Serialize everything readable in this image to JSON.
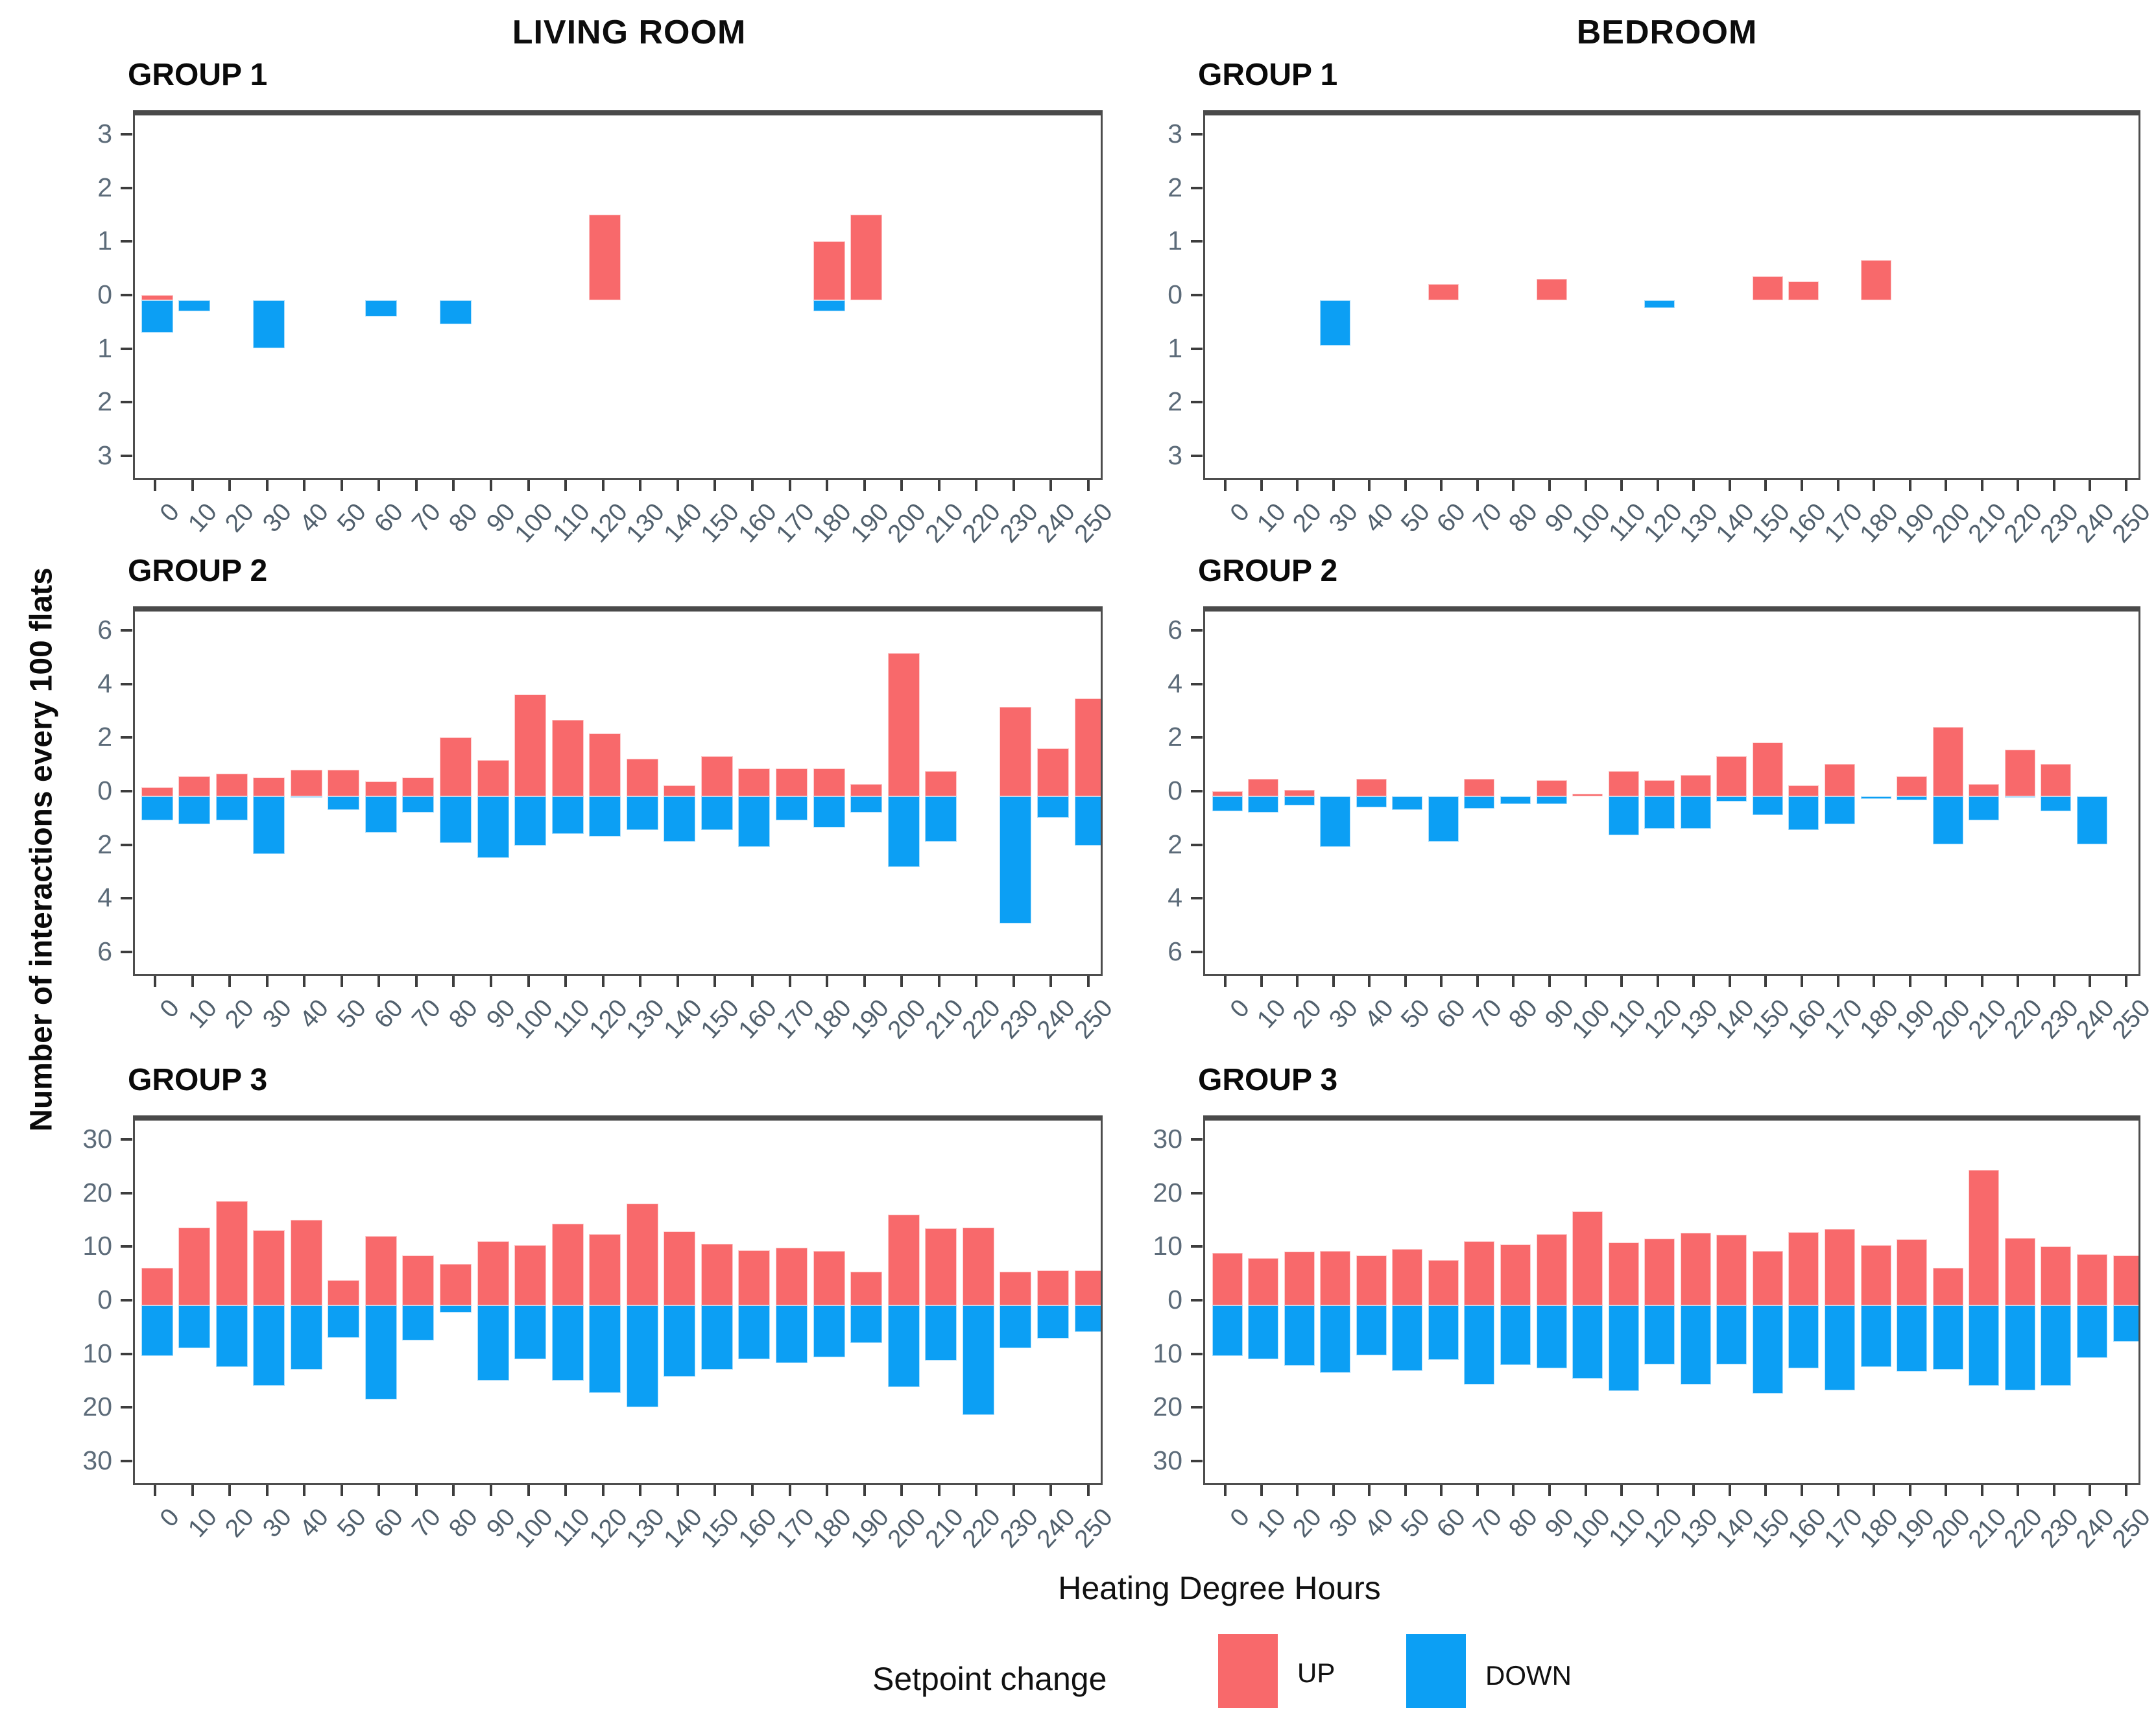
{
  "header": {
    "left_column_title": "LIVING ROOM",
    "right_column_title": "BEDROOM"
  },
  "chart_data": {
    "type": "bar",
    "description": "Diverging bar charts of thermostat setpoint interactions (UP above zero in red, DOWN below zero in blue) versus Heating Degree Hours, for two rooms and three occupant groups.",
    "xlabel": "Heating Degree Hours",
    "ylabel": "Number of interactions every 100 flats",
    "legend": {
      "title": "Setpoint change",
      "entries": [
        {
          "label": "UP",
          "color": "#F8696B"
        },
        {
          "label": "DOWN",
          "color": "#0C9FF4"
        }
      ],
      "position": "bottom"
    },
    "colors": {
      "up": "#F8696B",
      "down": "#0C9FF4",
      "axis_text": "#55636F",
      "border": "#4D4D4D"
    },
    "grid": false,
    "x_bins": [
      0,
      10,
      20,
      30,
      40,
      50,
      60,
      70,
      80,
      90,
      100,
      110,
      120,
      130,
      140,
      150,
      160,
      170,
      180,
      190,
      200,
      210,
      220,
      230,
      240,
      250
    ],
    "panels": [
      {
        "room": "LIVING ROOM",
        "group_label": "GROUP 1",
        "ylim": [
          -3.45,
          3.45
        ],
        "edge": 3.45,
        "ytick_vals": [
          3,
          2,
          1,
          0,
          -1,
          -2,
          -3
        ],
        "ytick_labels": [
          "3",
          "2",
          "1",
          "0",
          "1",
          "2",
          "3"
        ],
        "up": [
          0.1,
          0,
          0,
          0,
          0,
          0,
          0,
          0,
          0,
          0,
          0,
          0,
          1.6,
          0,
          0,
          0,
          0,
          0,
          1.1,
          1.6,
          0,
          0,
          0,
          0,
          0,
          0
        ],
        "down": [
          -0.6,
          -0.2,
          0,
          -0.9,
          0,
          0,
          -0.3,
          0,
          -0.45,
          0,
          0,
          0,
          0,
          0,
          0,
          0,
          0,
          0,
          -0.2,
          0,
          0,
          0,
          0,
          0,
          0,
          0
        ]
      },
      {
        "room": "BEDROOM",
        "group_label": "GROUP 1",
        "ylim": [
          -3.45,
          3.45
        ],
        "edge": 3.45,
        "ytick_vals": [
          3,
          2,
          1,
          0,
          -1,
          -2,
          -3
        ],
        "ytick_labels": [
          "3",
          "2",
          "1",
          "0",
          "1",
          "2",
          "3"
        ],
        "up": [
          0,
          0,
          0,
          0,
          0,
          0,
          0.3,
          0,
          0,
          0.4,
          0,
          0,
          0,
          0,
          0,
          0.45,
          0.35,
          0,
          0.75,
          0,
          0,
          0,
          0,
          0,
          0,
          0
        ],
        "down": [
          0,
          0,
          0,
          -0.85,
          0,
          0,
          0,
          0,
          0,
          0,
          0,
          0,
          -0.15,
          0,
          0,
          0,
          0,
          0,
          0,
          0,
          0,
          0,
          0,
          0,
          0,
          0
        ]
      },
      {
        "room": "LIVING ROOM",
        "group_label": "GROUP 2",
        "ylim": [
          -6.9,
          6.9
        ],
        "edge": 6.9,
        "ytick_vals": [
          6,
          4,
          2,
          0,
          -2,
          -4,
          -6
        ],
        "ytick_labels": [
          "6",
          "4",
          "2",
          "0",
          "2",
          "4",
          "6"
        ],
        "up": [
          0.35,
          0.75,
          0.85,
          0.7,
          1.0,
          1.0,
          0.55,
          0.7,
          2.2,
          1.35,
          3.8,
          2.85,
          2.35,
          1.4,
          0.4,
          1.5,
          1.05,
          1.05,
          1.05,
          0.45,
          5.35,
          0.95,
          0,
          3.35,
          1.8,
          3.65
        ],
        "down": [
          -0.9,
          -1.05,
          -0.9,
          -2.15,
          -0.05,
          -0.5,
          -1.35,
          -0.6,
          -1.75,
          -2.3,
          -1.85,
          -1.4,
          -1.5,
          -1.25,
          -1.7,
          -1.25,
          -1.9,
          -0.9,
          -1.15,
          -0.6,
          -2.65,
          -1.7,
          0,
          -4.75,
          -0.8,
          -1.85
        ]
      },
      {
        "room": "BEDROOM",
        "group_label": "GROUP 2",
        "ylim": [
          -6.9,
          6.9
        ],
        "edge": 6.9,
        "ytick_vals": [
          6,
          4,
          2,
          0,
          -2,
          -4,
          -6
        ],
        "ytick_labels": [
          "6",
          "4",
          "2",
          "0",
          "2",
          "4",
          "6"
        ],
        "up": [
          0.2,
          0.65,
          0.25,
          0,
          0.65,
          0,
          0,
          0.65,
          0,
          0.6,
          0.1,
          0.95,
          0.6,
          0.8,
          1.5,
          2.0,
          0.4,
          1.2,
          0,
          0.75,
          2.6,
          0.45,
          1.75,
          1.2,
          0,
          0
        ],
        "down": [
          -0.55,
          -0.6,
          -0.35,
          -1.9,
          -0.4,
          -0.5,
          -1.7,
          -0.45,
          -0.3,
          -0.3,
          0,
          -1.45,
          -1.2,
          -1.2,
          -0.2,
          -0.7,
          -1.25,
          -1.05,
          -0.1,
          -0.15,
          -1.8,
          -0.9,
          -0.05,
          -0.55,
          -1.8,
          0
        ]
      },
      {
        "room": "LIVING ROOM",
        "group_label": "GROUP 3",
        "ylim": [
          -34.5,
          34.5
        ],
        "edge": 34.5,
        "ytick_vals": [
          30,
          20,
          10,
          0,
          -10,
          -20,
          -30
        ],
        "ytick_labels": [
          "30",
          "20",
          "10",
          "0",
          "10",
          "20",
          "30"
        ],
        "up": [
          7,
          14.5,
          19.5,
          14,
          16,
          4.7,
          13,
          9.3,
          7.7,
          12,
          11.2,
          15.3,
          13.3,
          19,
          13.8,
          11.5,
          10.3,
          10.8,
          10.2,
          6.3,
          17,
          14.4,
          14.5,
          6.3,
          6.5,
          6.5
        ],
        "down": [
          -9.5,
          -8,
          -11.5,
          -15,
          -12,
          -6,
          -17.5,
          -6.5,
          -1.3,
          -14,
          -10,
          -14,
          -16.3,
          -19,
          -13.3,
          -12,
          -10,
          -10.8,
          -9.7,
          -7,
          -15.3,
          -10.3,
          -20.5,
          -8,
          -6.2,
          -5
        ]
      },
      {
        "room": "BEDROOM",
        "group_label": "GROUP 3",
        "ylim": [
          -34.5,
          34.5
        ],
        "edge": 34.5,
        "ytick_vals": [
          30,
          20,
          10,
          0,
          -10,
          -20,
          -30
        ],
        "ytick_labels": [
          "30",
          "20",
          "10",
          "0",
          "10",
          "20",
          "30"
        ],
        "up": [
          9.8,
          8.8,
          10,
          10.2,
          9.3,
          10.5,
          8.5,
          12,
          11.4,
          13.3,
          17.5,
          11.7,
          12.5,
          13.5,
          13.2,
          10.2,
          13.7,
          14.3,
          11.3,
          12.4,
          7,
          25.3,
          12.6,
          11,
          9.6,
          9.3
        ],
        "down": [
          -9.5,
          -10,
          -11.3,
          -12.6,
          -9.3,
          -12.2,
          -10.2,
          -14.8,
          -11.1,
          -11.7,
          -13.7,
          -16,
          -11,
          -14.8,
          -11,
          -16.5,
          -11.7,
          -15.9,
          -11.5,
          -12.4,
          -12,
          -15,
          -15.9,
          -15,
          -9.8,
          -6.8
        ]
      }
    ]
  }
}
